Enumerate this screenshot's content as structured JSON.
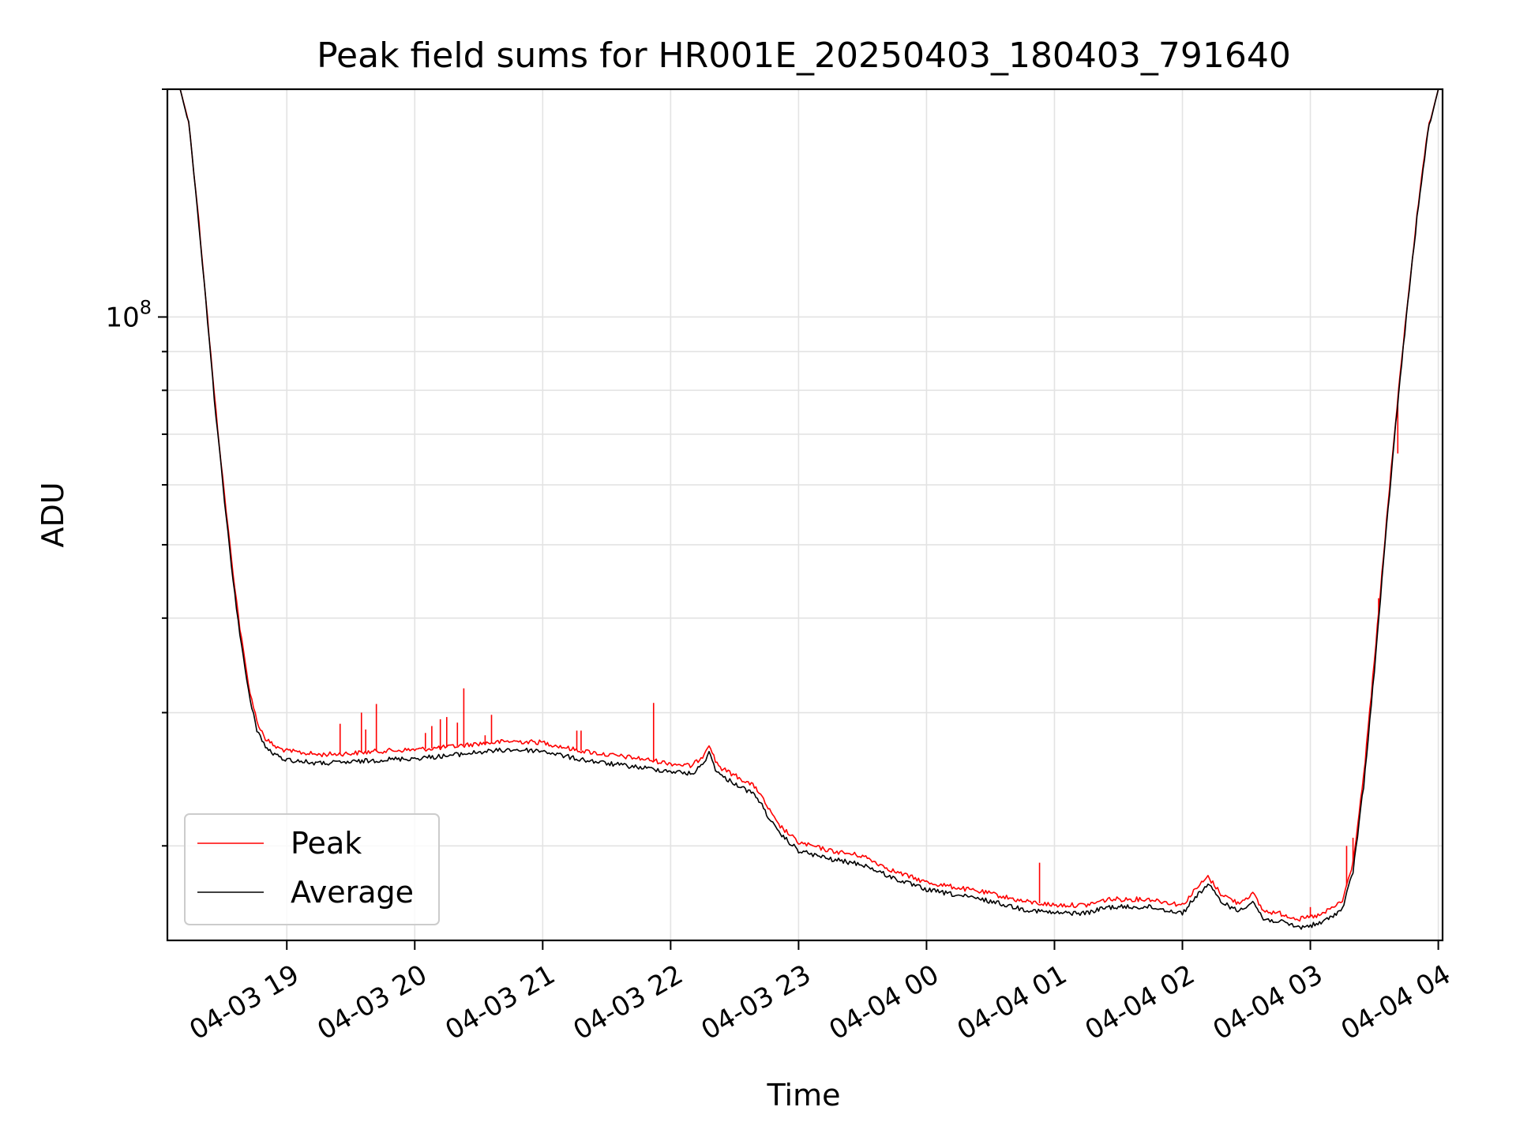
{
  "chart_data": {
    "type": "line",
    "title": "Peak field sums for HR001E_20250403_180403_791640",
    "xlabel": "Time",
    "ylabel": "ADU",
    "x_axis": {
      "type": "datetime",
      "range": [
        "2025-04-03 18:04",
        "2025-04-04 04:02"
      ],
      "ticks": [
        {
          "value": "2025-04-03 19:00",
          "label": "04-03 19"
        },
        {
          "value": "2025-04-03 20:00",
          "label": "04-03 20"
        },
        {
          "value": "2025-04-03 21:00",
          "label": "04-03 21"
        },
        {
          "value": "2025-04-03 22:00",
          "label": "04-03 22"
        },
        {
          "value": "2025-04-03 23:00",
          "label": "04-03 23"
        },
        {
          "value": "2025-04-04 00:00",
          "label": "04-04 00"
        },
        {
          "value": "2025-04-04 01:00",
          "label": "04-04 01"
        },
        {
          "value": "2025-04-04 02:00",
          "label": "04-04 02"
        },
        {
          "value": "2025-04-04 03:00",
          "label": "04-04 03"
        },
        {
          "value": "2025-04-04 04:00",
          "label": "04-04 04"
        }
      ]
    },
    "y_axis": {
      "scale": "log",
      "range": [
        15000000,
        200000000
      ],
      "major_ticks": [
        {
          "value": 100000000,
          "label_base": "10",
          "label_exp": "8"
        }
      ],
      "minor_ticks": [
        20000000,
        30000000,
        40000000,
        50000000,
        60000000,
        70000000,
        80000000,
        90000000,
        200000000
      ]
    },
    "grid": true,
    "legend": {
      "position": "lower-left",
      "entries": [
        "Peak",
        "Average"
      ]
    },
    "series": [
      {
        "name": "Average",
        "color": "#000000",
        "x": [
          "2025-04-03 18:04",
          "2025-04-03 18:10",
          "2025-04-03 18:14",
          "2025-04-03 18:18",
          "2025-04-03 18:22",
          "2025-04-03 18:26",
          "2025-04-03 18:30",
          "2025-04-03 18:34",
          "2025-04-03 18:38",
          "2025-04-03 18:42",
          "2025-04-03 18:46",
          "2025-04-03 18:50",
          "2025-04-03 18:55",
          "2025-04-03 19:00",
          "2025-04-03 19:15",
          "2025-04-03 19:30",
          "2025-04-03 19:45",
          "2025-04-03 20:00",
          "2025-04-03 20:15",
          "2025-04-03 20:30",
          "2025-04-03 20:45",
          "2025-04-03 21:00",
          "2025-04-03 21:15",
          "2025-04-03 21:30",
          "2025-04-03 21:45",
          "2025-04-03 22:00",
          "2025-04-03 22:10",
          "2025-04-03 22:15",
          "2025-04-03 22:18",
          "2025-04-03 22:21",
          "2025-04-03 22:24",
          "2025-04-03 22:30",
          "2025-04-03 22:40",
          "2025-04-03 22:50",
          "2025-04-03 23:00",
          "2025-04-03 23:15",
          "2025-04-03 23:30",
          "2025-04-03 23:45",
          "2025-04-04 00:00",
          "2025-04-04 00:15",
          "2025-04-04 00:30",
          "2025-04-04 00:45",
          "2025-04-04 01:00",
          "2025-04-04 01:15",
          "2025-04-04 01:25",
          "2025-04-04 01:35",
          "2025-04-04 01:45",
          "2025-04-04 02:00",
          "2025-04-04 02:06",
          "2025-04-04 02:12",
          "2025-04-04 02:18",
          "2025-04-04 02:26",
          "2025-04-04 02:33",
          "2025-04-04 02:38",
          "2025-04-04 02:45",
          "2025-04-04 02:55",
          "2025-04-04 03:05",
          "2025-04-04 03:15",
          "2025-04-04 03:20",
          "2025-04-04 03:25",
          "2025-04-04 03:30",
          "2025-04-04 03:35",
          "2025-04-04 03:40",
          "2025-04-04 03:45",
          "2025-04-04 03:50",
          "2025-04-04 03:55",
          "2025-04-04 04:00"
        ],
        "values": [
          200000000,
          200000000,
          180000000,
          140000000,
          105000000,
          78000000,
          60000000,
          47000000,
          38000000,
          32000000,
          28500000,
          27000000,
          26300000,
          26000000,
          25700000,
          25800000,
          26000000,
          26100000,
          26300000,
          26600000,
          26800000,
          26700000,
          26100000,
          25700000,
          25400000,
          25100000,
          24900000,
          25600000,
          26600000,
          25300000,
          24700000,
          24200000,
          23300000,
          20900000,
          19700000,
          19200000,
          18900000,
          18100000,
          17500000,
          17200000,
          16900000,
          16500000,
          16300000,
          16300000,
          16600000,
          16600000,
          16600000,
          16300000,
          17100000,
          17800000,
          16900000,
          16400000,
          16900000,
          16000000,
          15900000,
          15600000,
          15800000,
          16500000,
          18500000,
          24000000,
          34000000,
          50000000,
          72000000,
          100000000,
          135000000,
          175000000,
          200000000
        ]
      },
      {
        "name": "Peak",
        "color": "#ff0000",
        "x": [
          "2025-04-03 18:04",
          "2025-04-03 18:10",
          "2025-04-03 18:14",
          "2025-04-03 18:18",
          "2025-04-03 18:22",
          "2025-04-03 18:26",
          "2025-04-03 18:30",
          "2025-04-03 18:34",
          "2025-04-03 18:38",
          "2025-04-03 18:42",
          "2025-04-03 18:46",
          "2025-04-03 18:50",
          "2025-04-03 18:55",
          "2025-04-03 19:00",
          "2025-04-03 19:15",
          "2025-04-03 19:30",
          "2025-04-03 19:45",
          "2025-04-03 20:00",
          "2025-04-03 20:15",
          "2025-04-03 20:30",
          "2025-04-03 20:45",
          "2025-04-03 21:00",
          "2025-04-03 21:15",
          "2025-04-03 21:30",
          "2025-04-03 21:45",
          "2025-04-03 22:00",
          "2025-04-03 22:10",
          "2025-04-03 22:15",
          "2025-04-03 22:18",
          "2025-04-03 22:21",
          "2025-04-03 22:24",
          "2025-04-03 22:30",
          "2025-04-03 22:40",
          "2025-04-03 22:50",
          "2025-04-03 23:00",
          "2025-04-03 23:15",
          "2025-04-03 23:30",
          "2025-04-03 23:45",
          "2025-04-04 00:00",
          "2025-04-04 00:15",
          "2025-04-04 00:30",
          "2025-04-04 00:45",
          "2025-04-04 01:00",
          "2025-04-04 01:15",
          "2025-04-04 01:25",
          "2025-04-04 01:35",
          "2025-04-04 01:45",
          "2025-04-04 02:00",
          "2025-04-04 02:06",
          "2025-04-04 02:12",
          "2025-04-04 02:18",
          "2025-04-04 02:26",
          "2025-04-04 02:33",
          "2025-04-04 02:38",
          "2025-04-04 02:45",
          "2025-04-04 02:55",
          "2025-04-04 03:05",
          "2025-04-04 03:15",
          "2025-04-04 03:20",
          "2025-04-04 03:25",
          "2025-04-04 03:30",
          "2025-04-04 03:35",
          "2025-04-04 03:40",
          "2025-04-04 03:45",
          "2025-04-04 03:50",
          "2025-04-04 03:55",
          "2025-04-04 04:00"
        ],
        "values": [
          200000000,
          200000000,
          181000000,
          141000000,
          106000000,
          79000000,
          61000000,
          48000000,
          38800000,
          32700000,
          29200000,
          27700000,
          27000000,
          26700000,
          26400000,
          26500000,
          26700000,
          26800000,
          27000000,
          27300000,
          27500000,
          27400000,
          26800000,
          26400000,
          26100000,
          25700000,
          25500000,
          26300000,
          27300000,
          25900000,
          25300000,
          24800000,
          23900000,
          21400000,
          20200000,
          19700000,
          19400000,
          18500000,
          17900000,
          17600000,
          17300000,
          16900000,
          16700000,
          16700000,
          17000000,
          17000000,
          17000000,
          16700000,
          17500000,
          18200000,
          17300000,
          16800000,
          17300000,
          16400000,
          16300000,
          16000000,
          16200000,
          16900000,
          19000000,
          24700000,
          35000000,
          51000000,
          73000000,
          101000000,
          136000000,
          176000000,
          200000000
        ],
        "spikes": [
          {
            "x": "2025-04-03 19:25",
            "value": 29000000
          },
          {
            "x": "2025-04-03 19:35",
            "value": 30000000
          },
          {
            "x": "2025-04-03 19:37",
            "value": 28500000
          },
          {
            "x": "2025-04-03 19:42",
            "value": 30800000
          },
          {
            "x": "2025-04-03 20:05",
            "value": 28200000
          },
          {
            "x": "2025-04-03 20:08",
            "value": 28800000
          },
          {
            "x": "2025-04-03 20:12",
            "value": 29400000
          },
          {
            "x": "2025-04-03 20:15",
            "value": 29600000
          },
          {
            "x": "2025-04-03 20:20",
            "value": 29100000
          },
          {
            "x": "2025-04-03 20:23",
            "value": 32300000
          },
          {
            "x": "2025-04-03 20:33",
            "value": 28000000
          },
          {
            "x": "2025-04-03 20:36",
            "value": 29800000
          },
          {
            "x": "2025-04-03 21:16",
            "value": 28400000
          },
          {
            "x": "2025-04-03 21:18",
            "value": 28400000
          },
          {
            "x": "2025-04-03 21:52",
            "value": 30900000
          },
          {
            "x": "2025-04-04 00:53",
            "value": 19000000
          },
          {
            "x": "2025-04-04 03:00",
            "value": 16600000
          },
          {
            "x": "2025-04-04 03:17",
            "value": 20000000
          },
          {
            "x": "2025-04-04 03:20",
            "value": 20500000
          },
          {
            "x": "2025-04-04 03:32",
            "value": 42500000
          },
          {
            "x": "2025-04-04 03:41",
            "value": 66000000
          }
        ]
      }
    ]
  }
}
